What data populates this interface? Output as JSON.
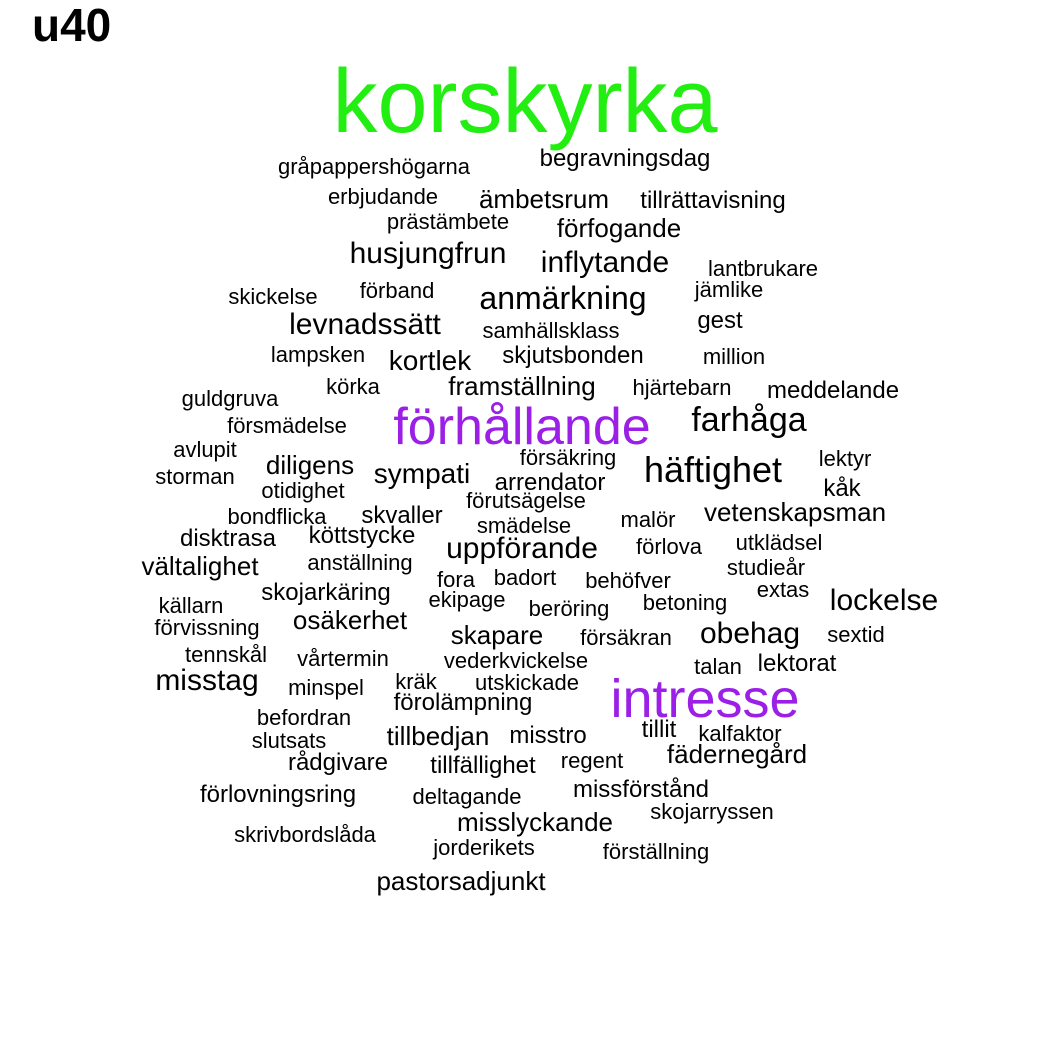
{
  "title": "u40",
  "colors": {
    "default": "#000000",
    "green": "#22ee11",
    "purple": "#9b1fe6"
  },
  "words": [
    {
      "text": "korskyrka",
      "color": "#22ee11"
    },
    {
      "text": "gråpappershögarna"
    },
    {
      "text": "begravningsdag"
    },
    {
      "text": "erbjudande"
    },
    {
      "text": "ämbetsrum"
    },
    {
      "text": "tillrättavisning"
    },
    {
      "text": "prästämbete"
    },
    {
      "text": "förfogande"
    },
    {
      "text": "husjungfrun"
    },
    {
      "text": "inflytande"
    },
    {
      "text": "lantbrukare"
    },
    {
      "text": "skickelse"
    },
    {
      "text": "förband"
    },
    {
      "text": "anmärkning"
    },
    {
      "text": "jämlike"
    },
    {
      "text": "levnadssätt"
    },
    {
      "text": "samhällsklass"
    },
    {
      "text": "gest"
    },
    {
      "text": "lampsken"
    },
    {
      "text": "kortlek"
    },
    {
      "text": "skjutsbonden"
    },
    {
      "text": "million"
    },
    {
      "text": "körka"
    },
    {
      "text": "framställning"
    },
    {
      "text": "hjärtebarn"
    },
    {
      "text": "meddelande"
    },
    {
      "text": "guldgruva"
    },
    {
      "text": "förhållande",
      "color": "#9b1fe6"
    },
    {
      "text": "farhåga"
    },
    {
      "text": "försmädelse"
    },
    {
      "text": "avlupit"
    },
    {
      "text": "försäkring"
    },
    {
      "text": "lektyr"
    },
    {
      "text": "diligens"
    },
    {
      "text": "sympati"
    },
    {
      "text": "häftighet"
    },
    {
      "text": "storman"
    },
    {
      "text": "arrendator"
    },
    {
      "text": "otidighet"
    },
    {
      "text": "kåk"
    },
    {
      "text": "förutsägelse"
    },
    {
      "text": "bondflicka"
    },
    {
      "text": "skvaller"
    },
    {
      "text": "vetenskapsman"
    },
    {
      "text": "smädelse"
    },
    {
      "text": "malör"
    },
    {
      "text": "disktrasa"
    },
    {
      "text": "köttstycke"
    },
    {
      "text": "utklädsel"
    },
    {
      "text": "uppförande"
    },
    {
      "text": "förlova"
    },
    {
      "text": "vältalighet"
    },
    {
      "text": "anställning"
    },
    {
      "text": "studieår"
    },
    {
      "text": "badort"
    },
    {
      "text": "fora"
    },
    {
      "text": "behöfver"
    },
    {
      "text": "skojarkäring"
    },
    {
      "text": "extas"
    },
    {
      "text": "källarn"
    },
    {
      "text": "ekipage"
    },
    {
      "text": "beröring"
    },
    {
      "text": "betoning"
    },
    {
      "text": "lockelse"
    },
    {
      "text": "osäkerhet"
    },
    {
      "text": "förvissning"
    },
    {
      "text": "skapare"
    },
    {
      "text": "försäkran"
    },
    {
      "text": "obehag"
    },
    {
      "text": "sextid"
    },
    {
      "text": "tennskål"
    },
    {
      "text": "vårtermin"
    },
    {
      "text": "vederkvickelse"
    },
    {
      "text": "talan"
    },
    {
      "text": "lektorat"
    },
    {
      "text": "misstag"
    },
    {
      "text": "kräk"
    },
    {
      "text": "utskickade"
    },
    {
      "text": "minspel"
    },
    {
      "text": "intresse",
      "color": "#9b1fe6"
    },
    {
      "text": "förolämpning"
    },
    {
      "text": "befordran"
    },
    {
      "text": "tillit"
    },
    {
      "text": "kalfaktor"
    },
    {
      "text": "tillbedjan"
    },
    {
      "text": "misstro"
    },
    {
      "text": "slutsats"
    },
    {
      "text": "fädernegård"
    },
    {
      "text": "rådgivare"
    },
    {
      "text": "tillfällighet"
    },
    {
      "text": "regent"
    },
    {
      "text": "missförstånd"
    },
    {
      "text": "förlovningsring"
    },
    {
      "text": "deltagande"
    },
    {
      "text": "skojarryssen"
    },
    {
      "text": "misslyckande"
    },
    {
      "text": "skrivbordslåda"
    },
    {
      "text": "jorderikets"
    },
    {
      "text": "förställning"
    },
    {
      "text": "pastorsadjunkt"
    }
  ]
}
